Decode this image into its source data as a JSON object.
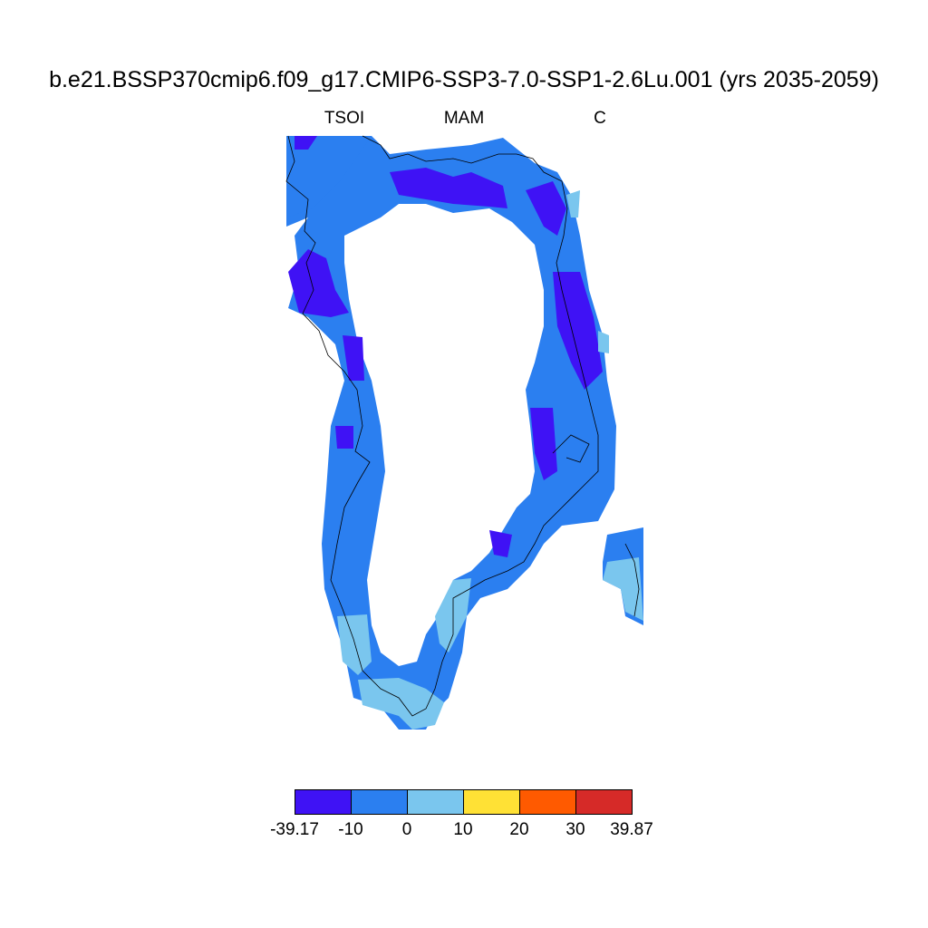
{
  "title": "b.e21.BSSP370cmip6.f09_g17.CMIP6-SSP3-7.0-SSP1-2.6Lu.001 (yrs 2035-2059)",
  "subtitle_left": "TSOI",
  "subtitle_center": "MAM",
  "subtitle_right": "C",
  "colorbar": {
    "colors": [
      "#3f12f5",
      "#2b7ff0",
      "#7ac6ee",
      "#ffe135",
      "#ff5a00",
      "#d62a28"
    ],
    "labels": [
      "-39.17",
      "-10",
      "0",
      "10",
      "20",
      "30",
      "39.87"
    ]
  },
  "legend_classes": {
    "dark": "#3f12f5",
    "mid": "#2b7ff0",
    "light": "#7ac6ee",
    "coast": "#000000"
  }
}
